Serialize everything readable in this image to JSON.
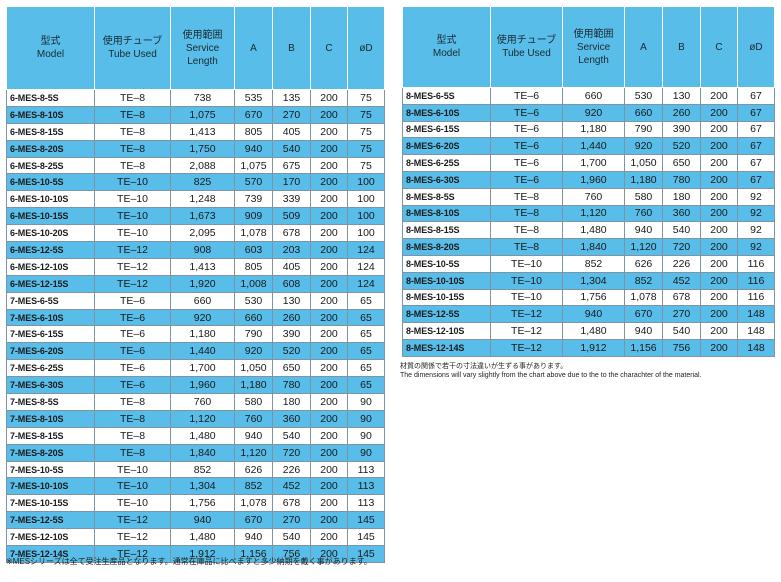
{
  "headers": {
    "model": [
      "型式",
      "Model"
    ],
    "tube": [
      "使用チューブ",
      "Tube Used"
    ],
    "service": [
      "使用範囲",
      "Service",
      "Length"
    ],
    "a": "A",
    "b": "B",
    "c": "C",
    "d": "øD"
  },
  "left_rows": [
    [
      "6-MES-8-5S",
      "TE–8",
      "738",
      "535",
      "135",
      "200",
      "75"
    ],
    [
      "6-MES-8-10S",
      "TE–8",
      "1,075",
      "670",
      "270",
      "200",
      "75"
    ],
    [
      "6-MES-8-15S",
      "TE–8",
      "1,413",
      "805",
      "405",
      "200",
      "75"
    ],
    [
      "6-MES-8-20S",
      "TE–8",
      "1,750",
      "940",
      "540",
      "200",
      "75"
    ],
    [
      "6-MES-8-25S",
      "TE–8",
      "2,088",
      "1,075",
      "675",
      "200",
      "75"
    ],
    [
      "6-MES-10-5S",
      "TE–10",
      "825",
      "570",
      "170",
      "200",
      "100"
    ],
    [
      "6-MES-10-10S",
      "TE–10",
      "1,248",
      "739",
      "339",
      "200",
      "100"
    ],
    [
      "6-MES-10-15S",
      "TE–10",
      "1,673",
      "909",
      "509",
      "200",
      "100"
    ],
    [
      "6-MES-10-20S",
      "TE–10",
      "2,095",
      "1,078",
      "678",
      "200",
      "100"
    ],
    [
      "6-MES-12-5S",
      "TE–12",
      "908",
      "603",
      "203",
      "200",
      "124"
    ],
    [
      "6-MES-12-10S",
      "TE–12",
      "1,413",
      "805",
      "405",
      "200",
      "124"
    ],
    [
      "6-MES-12-15S",
      "TE–12",
      "1,920",
      "1,008",
      "608",
      "200",
      "124"
    ],
    [
      "7-MES-6-5S",
      "TE–6",
      "660",
      "530",
      "130",
      "200",
      "65"
    ],
    [
      "7-MES-6-10S",
      "TE–6",
      "920",
      "660",
      "260",
      "200",
      "65"
    ],
    [
      "7-MES-6-15S",
      "TE–6",
      "1,180",
      "790",
      "390",
      "200",
      "65"
    ],
    [
      "7-MES-6-20S",
      "TE–6",
      "1,440",
      "920",
      "520",
      "200",
      "65"
    ],
    [
      "7-MES-6-25S",
      "TE–6",
      "1,700",
      "1,050",
      "650",
      "200",
      "65"
    ],
    [
      "7-MES-6-30S",
      "TE–6",
      "1,960",
      "1,180",
      "780",
      "200",
      "65"
    ],
    [
      "7-MES-8-5S",
      "TE–8",
      "760",
      "580",
      "180",
      "200",
      "90"
    ],
    [
      "7-MES-8-10S",
      "TE–8",
      "1,120",
      "760",
      "360",
      "200",
      "90"
    ],
    [
      "7-MES-8-15S",
      "TE–8",
      "1,480",
      "940",
      "540",
      "200",
      "90"
    ],
    [
      "7-MES-8-20S",
      "TE–8",
      "1,840",
      "1,120",
      "720",
      "200",
      "90"
    ],
    [
      "7-MES-10-5S",
      "TE–10",
      "852",
      "626",
      "226",
      "200",
      "113"
    ],
    [
      "7-MES-10-10S",
      "TE–10",
      "1,304",
      "852",
      "452",
      "200",
      "113"
    ],
    [
      "7-MES-10-15S",
      "TE–10",
      "1,756",
      "1,078",
      "678",
      "200",
      "113"
    ],
    [
      "7-MES-12-5S",
      "TE–12",
      "940",
      "670",
      "270",
      "200",
      "145"
    ],
    [
      "7-MES-12-10S",
      "TE–12",
      "1,480",
      "940",
      "540",
      "200",
      "145"
    ],
    [
      "7-MES-12-14S",
      "TE–12",
      "1,912",
      "1,156",
      "756",
      "200",
      "145"
    ]
  ],
  "right_rows": [
    [
      "8-MES-6-5S",
      "TE–6",
      "660",
      "530",
      "130",
      "200",
      "67"
    ],
    [
      "8-MES-6-10S",
      "TE–6",
      "920",
      "660",
      "260",
      "200",
      "67"
    ],
    [
      "8-MES-6-15S",
      "TE–6",
      "1,180",
      "790",
      "390",
      "200",
      "67"
    ],
    [
      "8-MES-6-20S",
      "TE–6",
      "1,440",
      "920",
      "520",
      "200",
      "67"
    ],
    [
      "8-MES-6-25S",
      "TE–6",
      "1,700",
      "1,050",
      "650",
      "200",
      "67"
    ],
    [
      "8-MES-6-30S",
      "TE–6",
      "1,960",
      "1,180",
      "780",
      "200",
      "67"
    ],
    [
      "8-MES-8-5S",
      "TE–8",
      "760",
      "580",
      "180",
      "200",
      "92"
    ],
    [
      "8-MES-8-10S",
      "TE–8",
      "1,120",
      "760",
      "360",
      "200",
      "92"
    ],
    [
      "8-MES-8-15S",
      "TE–8",
      "1,480",
      "940",
      "540",
      "200",
      "92"
    ],
    [
      "8-MES-8-20S",
      "TE–8",
      "1,840",
      "1,120",
      "720",
      "200",
      "92"
    ],
    [
      "8-MES-10-5S",
      "TE–10",
      "852",
      "626",
      "226",
      "200",
      "116"
    ],
    [
      "8-MES-10-10S",
      "TE–10",
      "1,304",
      "852",
      "452",
      "200",
      "116"
    ],
    [
      "8-MES-10-15S",
      "TE–10",
      "1,756",
      "1,078",
      "678",
      "200",
      "116"
    ],
    [
      "8-MES-12-5S",
      "TE–12",
      "940",
      "670",
      "270",
      "200",
      "148"
    ],
    [
      "8-MES-12-10S",
      "TE–12",
      "1,480",
      "940",
      "540",
      "200",
      "148"
    ],
    [
      "8-MES-12-14S",
      "TE–12",
      "1,912",
      "1,156",
      "756",
      "200",
      "148"
    ]
  ],
  "notes": {
    "left": "※MESシリーズは全て受注生産品となります。通常在庫品に比べますと多少納期を戴く事があります。",
    "right_ja": "材質の関係で若干の寸法違いが生ずる事があります。",
    "right_en": "The dimensions will vary slightly from the chart above due to the to the charachter of the material."
  },
  "colors": {
    "header_bg": "#58bde8",
    "stripe_bg": "#58bde8",
    "border": "#7f94a2"
  }
}
